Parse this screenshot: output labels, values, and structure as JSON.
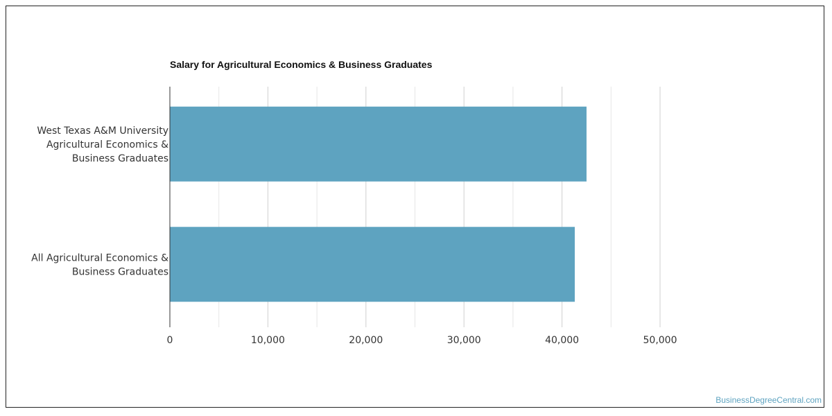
{
  "chart_data": {
    "type": "bar",
    "orientation": "horizontal",
    "title": "Salary for Agricultural Economics & Business Graduates",
    "categories": [
      [
        "West Texas A&M University",
        "Agricultural Economics &",
        "Business Graduates"
      ],
      [
        "All Agricultural Economics &",
        "Business Graduates"
      ]
    ],
    "values": [
      42500,
      41300
    ],
    "xlim": [
      0,
      50000
    ],
    "ticks": [
      0,
      10000,
      20000,
      30000,
      40000,
      50000
    ],
    "tick_labels": [
      "0",
      "10,000",
      "20,000",
      "30,000",
      "40,000",
      "50,000"
    ],
    "grid": true,
    "bar_color": "#5ea3c0"
  },
  "watermark": "BusinessDegreeCentral.com"
}
